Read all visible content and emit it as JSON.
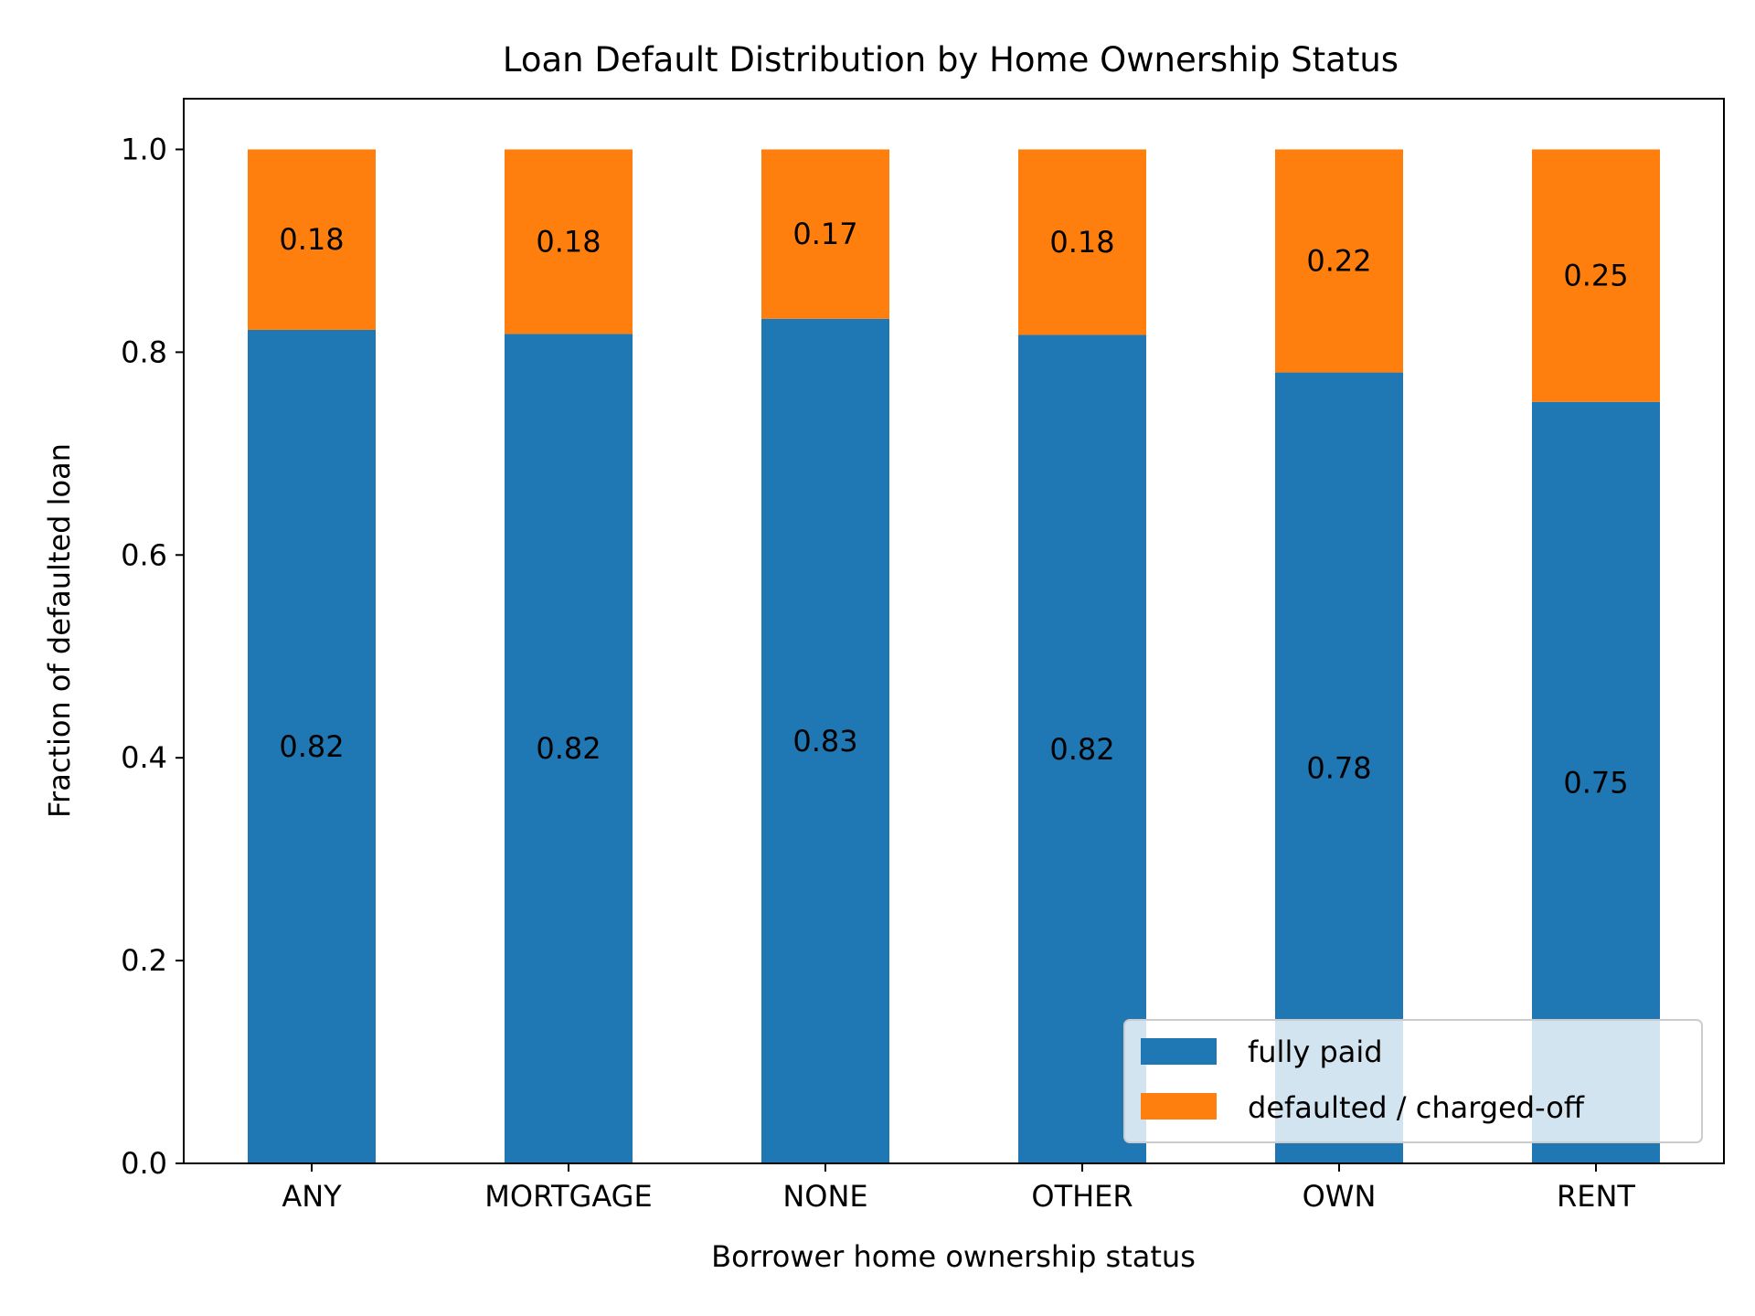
{
  "chart_data": {
    "type": "bar",
    "stacked": true,
    "title": "Loan Default Distribution by Home Ownership Status",
    "xlabel": "Borrower home ownership status",
    "ylabel": "Fraction of defaulted loan",
    "categories": [
      "ANY",
      "MORTGAGE",
      "NONE",
      "OTHER",
      "OWN",
      "RENT"
    ],
    "series": [
      {
        "name": "fully paid",
        "color": "#1f77b4",
        "values": [
          0.822,
          0.818,
          0.833,
          0.817,
          0.78,
          0.751
        ],
        "labels": [
          "0.82",
          "0.82",
          "0.83",
          "0.82",
          "0.78",
          "0.75"
        ]
      },
      {
        "name": "defaulted / charged-off",
        "color": "#ff7f0e",
        "values": [
          0.178,
          0.182,
          0.167,
          0.183,
          0.22,
          0.249
        ],
        "labels": [
          "0.18",
          "0.18",
          "0.17",
          "0.18",
          "0.22",
          "0.25"
        ]
      }
    ],
    "ylim": [
      0,
      1.05
    ],
    "yticks": [
      "0.0",
      "0.2",
      "0.4",
      "0.6",
      "0.8",
      "1.0"
    ],
    "legend": {
      "position": "lower right"
    },
    "grid": false
  }
}
